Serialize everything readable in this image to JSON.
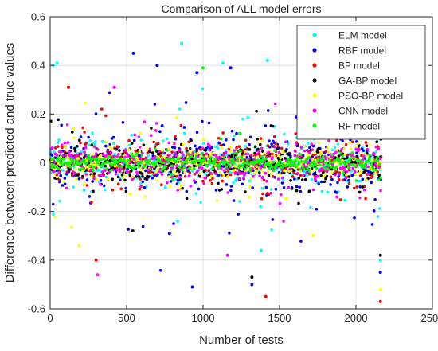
{
  "chart_data": {
    "type": "scatter",
    "title": "Comparison of ALL model errors",
    "xlabel": "Number of tests",
    "ylabel": "Difference between predicted and true values",
    "xlim": [
      0,
      2500
    ],
    "ylim": [
      -0.6,
      0.6
    ],
    "x_ticks": [
      0,
      500,
      1000,
      1500,
      2000,
      2500
    ],
    "y_ticks": [
      -0.6,
      -0.4,
      -0.2,
      0,
      0.2,
      0.4,
      0.6
    ],
    "x_tick_labels": [
      "0",
      "500",
      "1000",
      "1500",
      "2000",
      "2500"
    ],
    "y_tick_labels": [
      "-0.6",
      "-0.4",
      "-0.2",
      "0",
      "0.2",
      "0.4",
      "0.6"
    ],
    "grid": true,
    "legend_position": "top-right",
    "n_points_per_series": 2160,
    "series": [
      {
        "name": "ELM model",
        "color": "#00ffff",
        "spread": 0.085,
        "notable_points": [
          [
            20,
            0.4
          ],
          [
            45,
            0.41
          ],
          [
            860,
            0.49
          ],
          [
            1130,
            0.41
          ],
          [
            1420,
            0.42
          ],
          [
            20,
            -0.21
          ],
          [
            1380,
            -0.36
          ],
          [
            2160,
            -0.4
          ]
        ]
      },
      {
        "name": "RBF model",
        "color": "#0000ff",
        "spread": 0.1,
        "notable_points": [
          [
            545,
            0.45
          ],
          [
            700,
            0.4
          ],
          [
            960,
            0.37
          ],
          [
            1180,
            0.39
          ],
          [
            930,
            -0.51
          ],
          [
            780,
            -0.29
          ],
          [
            1320,
            -0.5
          ],
          [
            2160,
            -0.45
          ]
        ]
      },
      {
        "name": "BP model",
        "color": "#ff0000",
        "spread": 0.07,
        "notable_points": [
          [
            120,
            0.31
          ],
          [
            1410,
            -0.55
          ],
          [
            2160,
            -0.57
          ],
          [
            300,
            -0.4
          ]
        ]
      },
      {
        "name": "GA-BP model",
        "color": "#000000",
        "spread": 0.065,
        "notable_points": [
          [
            1320,
            -0.47
          ],
          [
            2160,
            -0.38
          ],
          [
            540,
            -0.28
          ]
        ]
      },
      {
        "name": "PSO-BP model",
        "color": "#ffff00",
        "spread": 0.065,
        "notable_points": [
          [
            190,
            -0.34
          ],
          [
            2160,
            -0.52
          ],
          [
            1720,
            -0.3
          ]
        ]
      },
      {
        "name": "CNN model",
        "color": "#ff00ff",
        "spread": 0.07,
        "notable_points": [
          [
            310,
            -0.46
          ],
          [
            1160,
            -0.38
          ],
          [
            420,
            0.31
          ]
        ]
      },
      {
        "name": "RF model",
        "color": "#00ff00",
        "spread": 0.025,
        "notable_points": [
          [
            1000,
            0.39
          ],
          [
            1240,
            0.12
          ]
        ]
      }
    ]
  }
}
